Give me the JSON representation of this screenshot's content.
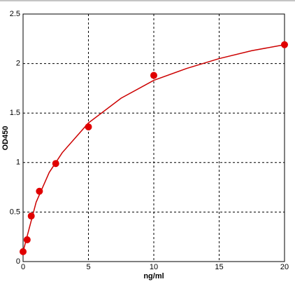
{
  "chart_data": {
    "type": "scatter",
    "x_label": "ng/ml",
    "y_label": "OD450",
    "x": [
      0,
      0.312,
      0.625,
      1.25,
      2.5,
      5,
      10,
      20
    ],
    "series": [
      {
        "color": "#e00000",
        "values": [
          0.1,
          0.22,
          0.46,
          0.71,
          0.99,
          1.36,
          1.88,
          2.19
        ]
      }
    ],
    "fit": {
      "color": "#cc0000",
      "x": [
        0,
        0.5,
        1,
        2,
        3,
        5,
        7.5,
        10,
        12.5,
        15,
        17.5,
        20
      ],
      "y": [
        0.1,
        0.35,
        0.6,
        0.9,
        1.1,
        1.4,
        1.65,
        1.83,
        1.95,
        2.05,
        2.13,
        2.19
      ]
    },
    "xlim": [
      0,
      20
    ],
    "xticks": [
      0,
      5,
      10,
      15,
      20
    ],
    "ylim": [
      0,
      2.5
    ],
    "yticks": [
      0,
      0.5,
      1,
      1.5,
      2,
      2.5
    ],
    "grid": true
  }
}
